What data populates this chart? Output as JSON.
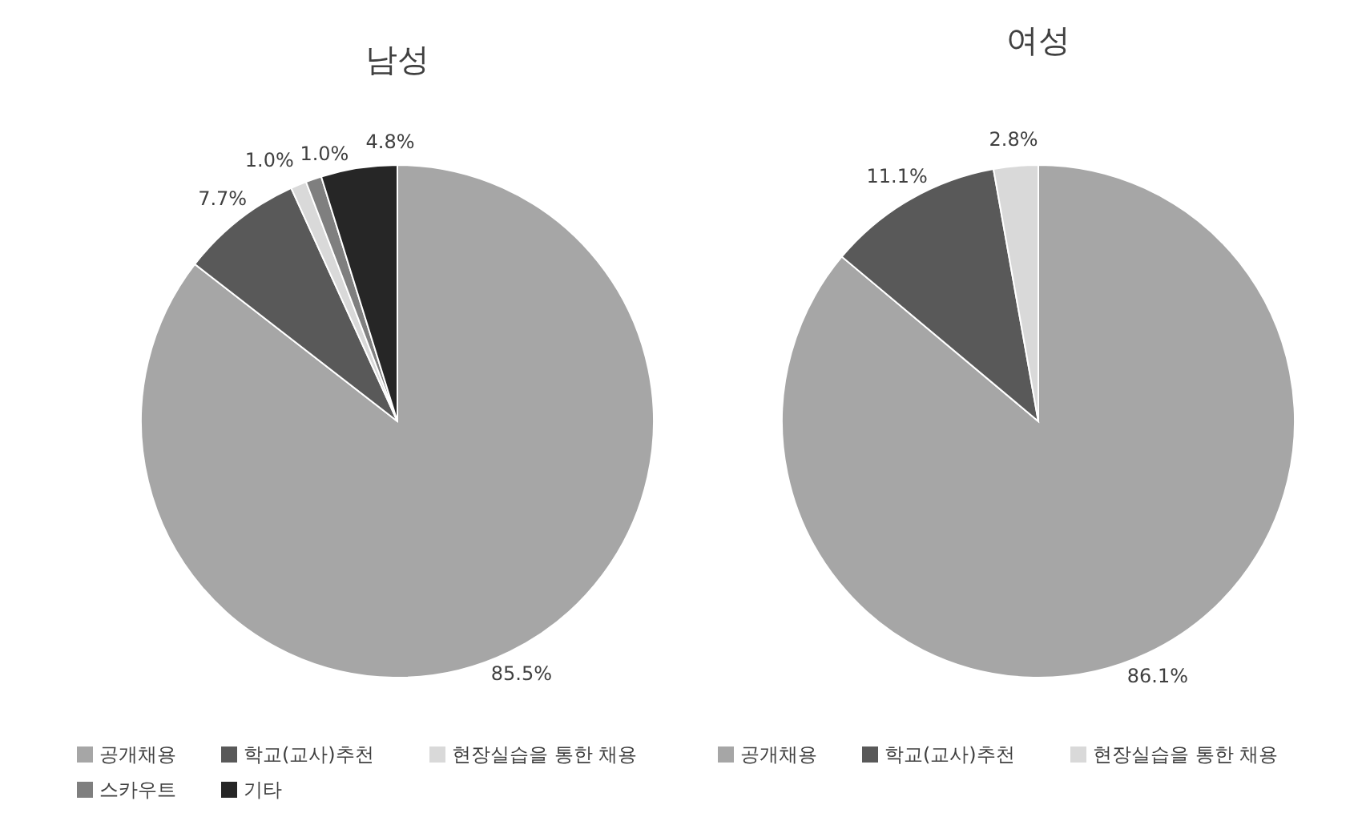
{
  "chart_data": [
    {
      "type": "pie",
      "title": "남성",
      "categories": [
        "공개채용",
        "학교(교사)추천",
        "현장실습을 통한 채용",
        "스카우트",
        "기타"
      ],
      "values": [
        85.5,
        7.7,
        1.0,
        1.0,
        4.8
      ],
      "value_labels": [
        "85.5%",
        "7.7%",
        "1.0%",
        "1.0%",
        "4.8%"
      ],
      "colors": [
        "#a6a6a6",
        "#595959",
        "#d9d9d9",
        "#7f7f7f",
        "#262626"
      ],
      "legend": "bottom"
    },
    {
      "type": "pie",
      "title": "여성",
      "categories": [
        "공개채용",
        "학교(교사)추천",
        "현장실습을 통한 채용"
      ],
      "values": [
        86.1,
        11.1,
        2.8
      ],
      "value_labels": [
        "86.1%",
        "11.1%",
        "2.8%"
      ],
      "colors": [
        "#a6a6a6",
        "#595959",
        "#d9d9d9"
      ],
      "legend": "bottom"
    }
  ]
}
